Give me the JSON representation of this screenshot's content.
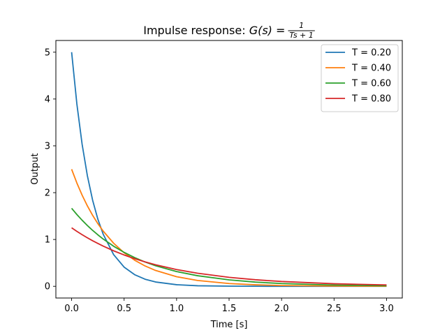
{
  "chart_data": {
    "type": "line",
    "title": {
      "prefix": "Impulse response: ",
      "lhs": "G(s) = ",
      "numerator": "1",
      "denominator": "Ts + 1"
    },
    "xlabel": "Time [s]",
    "ylabel": "Output",
    "xlim": [
      -0.15,
      3.15
    ],
    "ylim": [
      -0.25,
      5.25
    ],
    "xticks": [
      0.0,
      0.5,
      1.0,
      1.5,
      2.0,
      2.5,
      3.0
    ],
    "xtick_labels": [
      "0.0",
      "0.5",
      "1.0",
      "1.5",
      "2.0",
      "2.5",
      "3.0"
    ],
    "yticks": [
      0,
      1,
      2,
      3,
      4,
      5
    ],
    "ytick_labels": [
      "0",
      "1",
      "2",
      "3",
      "4",
      "5"
    ],
    "grid": false,
    "legend_position": "top-right",
    "x": [
      0.0,
      0.05,
      0.1,
      0.15,
      0.2,
      0.25,
      0.3,
      0.4,
      0.5,
      0.6,
      0.7,
      0.8,
      1.0,
      1.2,
      1.5,
      1.75,
      2.0,
      2.5,
      3.0
    ],
    "series": [
      {
        "name": "T = 0.20",
        "color": "#1f77b4",
        "values": [
          5.0,
          3.894,
          3.033,
          2.362,
          1.839,
          1.433,
          1.116,
          0.677,
          0.41,
          0.249,
          0.151,
          0.092,
          0.034,
          0.012,
          0.003,
          0.001,
          0.0,
          0.0,
          0.0
        ]
      },
      {
        "name": "T = 0.40",
        "color": "#ff7f0e",
        "values": [
          2.5,
          2.206,
          1.947,
          1.718,
          1.516,
          1.338,
          1.181,
          0.92,
          0.716,
          0.558,
          0.434,
          0.338,
          0.205,
          0.124,
          0.059,
          0.032,
          0.017,
          0.005,
          0.001
        ]
      },
      {
        "name": "T = 0.60",
        "color": "#2ca02c",
        "values": [
          1.667,
          1.533,
          1.411,
          1.298,
          1.194,
          1.099,
          1.011,
          0.856,
          0.725,
          0.613,
          0.519,
          0.439,
          0.315,
          0.226,
          0.137,
          0.09,
          0.059,
          0.026,
          0.011
        ]
      },
      {
        "name": "T = 0.80",
        "color": "#d62728",
        "values": [
          1.25,
          1.174,
          1.103,
          1.036,
          0.973,
          0.915,
          0.859,
          0.758,
          0.669,
          0.59,
          0.521,
          0.46,
          0.358,
          0.279,
          0.191,
          0.14,
          0.103,
          0.055,
          0.029
        ]
      }
    ]
  }
}
